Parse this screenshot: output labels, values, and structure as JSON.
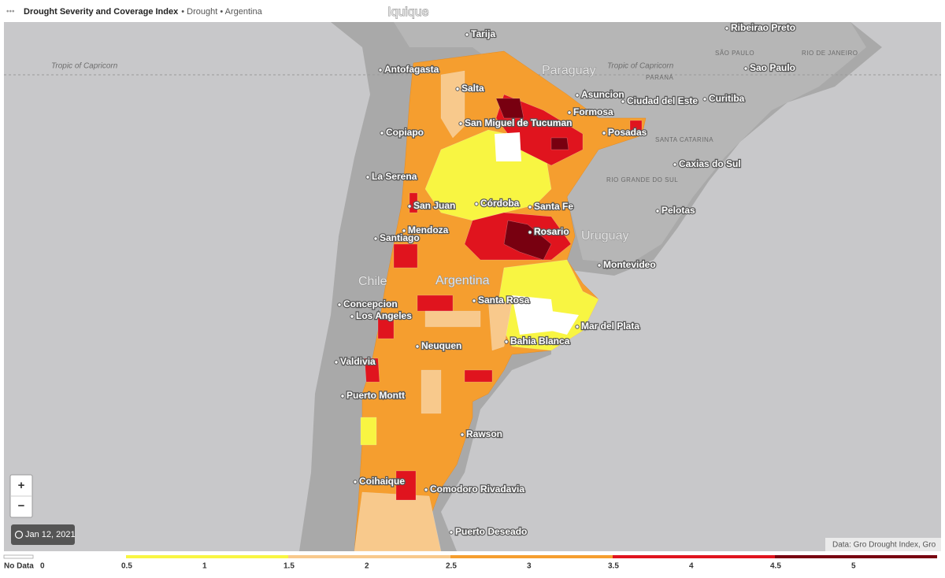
{
  "header": {
    "title": "Drought Severity and Coverage Index",
    "subtitle": "• Drought • Argentina"
  },
  "map": {
    "labels": [
      "Iquique",
      "Tarija",
      "Antofagasta",
      "Tropic of Capricorn",
      "Tropic of Capricorn",
      "Paraguay",
      "Salta",
      "Asuncion",
      "Ciudad del Este",
      "Curitiba",
      "Sao Paulo",
      "Ribeirao Preto",
      "Formosa",
      "San Miguel de Tucuman",
      "Copiapo",
      "Posadas",
      "Caxias do Sul",
      "La Serena",
      "San Juan",
      "Córdoba",
      "Santa Fe",
      "Pelotas",
      "Mendoza",
      "Rosario",
      "Uruguay",
      "Santiago",
      "Montevideo",
      "Chile",
      "Argentina",
      "Concepcion",
      "Santa Rosa",
      "Los Angeles",
      "Mar del Plata",
      "Neuquen",
      "Bahia Blanca",
      "Valdivia",
      "Puerto Montt",
      "Rawson",
      "Coihaique",
      "Comodoro Rivadavia",
      "Puerto Deseado",
      "SÃO PAULO",
      "RIO DE JANEIRO",
      "PARANÁ",
      "SANTA CATARINA",
      "RIO GRANDE DO SUL"
    ],
    "regions": [
      1,
      1,
      2,
      4,
      5,
      5,
      4,
      5,
      4,
      4,
      4,
      4,
      2,
      2,
      1,
      4,
      4,
      2,
      4,
      4,
      2
    ],
    "date": "Jan 12, 2021",
    "attribution": "Data: Gro Drought Index, Gro",
    "zoom_in": "+",
    "zoom_out": "−"
  },
  "legend": {
    "no_data": "No Data",
    "ticks": [
      0,
      0.5,
      1,
      1.5,
      2,
      2.5,
      3,
      3.5,
      4,
      4.5,
      5
    ],
    "bins": [
      {
        "range": [
          0.5,
          1.5
        ],
        "color": "#f8f542"
      },
      {
        "range": [
          1.5,
          2.5
        ],
        "color": "#f8c98c"
      },
      {
        "range": [
          2.5,
          3.5
        ],
        "color": "#f59e2f"
      },
      {
        "range": [
          3.5,
          4.5
        ],
        "color": "#e0141e"
      },
      {
        "range": [
          4.5,
          5.5
        ],
        "color": "#780010"
      }
    ]
  }
}
